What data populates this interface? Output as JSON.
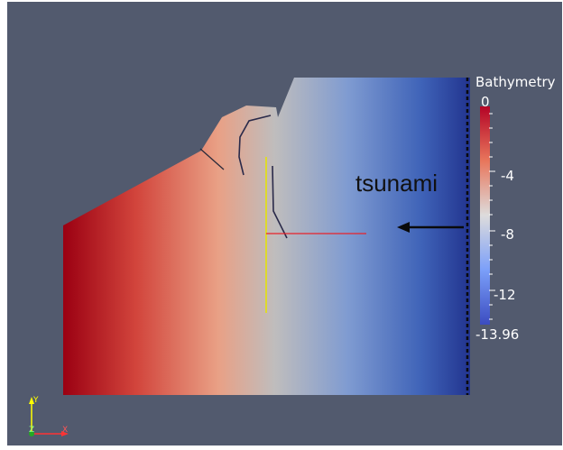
{
  "colorbar": {
    "title": "Bathymetry",
    "max_label": "0",
    "ticks": [
      "-4",
      "-8",
      "-12"
    ],
    "min_label": "-13.96",
    "colors": {
      "shallow": "#b40426",
      "mid": "#dddcdc",
      "deep": "#3b4cc0"
    }
  },
  "annotation": {
    "text": "tsunami",
    "arrow_direction": "left"
  },
  "axes_orientation": {
    "x_label": "X",
    "y_label": "Y",
    "z_label": "Z",
    "x_color": "#ff3333",
    "y_color": "#ffff00",
    "z_color": "#22aa22"
  },
  "colors": {
    "background": "#525a6e",
    "probe_horizontal": "#e8222a",
    "probe_vertical": "#e6e600",
    "boundary": "#0a0a0a"
  }
}
